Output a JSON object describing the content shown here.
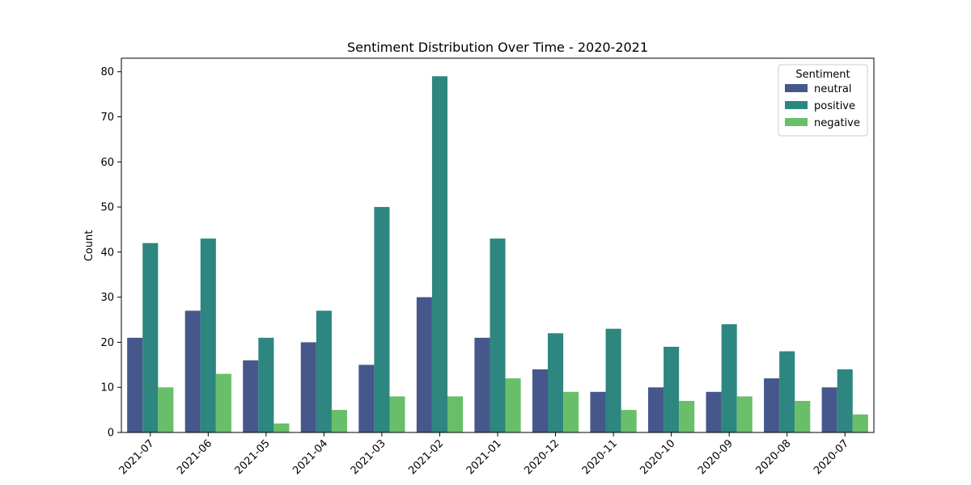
{
  "chart_data": {
    "type": "bar",
    "title": "Sentiment Distribution Over Time - 2020-2021",
    "xlabel": "",
    "ylabel": "Count",
    "ylim": [
      0,
      83
    ],
    "yticks": [
      0,
      10,
      20,
      30,
      40,
      50,
      60,
      70,
      80
    ],
    "categories": [
      "2021-07",
      "2021-06",
      "2021-05",
      "2021-04",
      "2021-03",
      "2021-02",
      "2021-01",
      "2020-12",
      "2020-11",
      "2020-10",
      "2020-09",
      "2020-08",
      "2020-07"
    ],
    "series": [
      {
        "name": "neutral",
        "color": "#46578c",
        "values": [
          21,
          27,
          16,
          20,
          15,
          30,
          21,
          14,
          9,
          10,
          9,
          12,
          10
        ]
      },
      {
        "name": "positive",
        "color": "#2d867f",
        "values": [
          42,
          43,
          21,
          27,
          50,
          79,
          43,
          22,
          23,
          19,
          24,
          18,
          14
        ]
      },
      {
        "name": "negative",
        "color": "#69bf69",
        "values": [
          10,
          13,
          2,
          5,
          8,
          8,
          12,
          9,
          5,
          7,
          8,
          7,
          4
        ]
      }
    ],
    "legend": {
      "title": "Sentiment",
      "position": "top-right"
    },
    "grid": false
  }
}
